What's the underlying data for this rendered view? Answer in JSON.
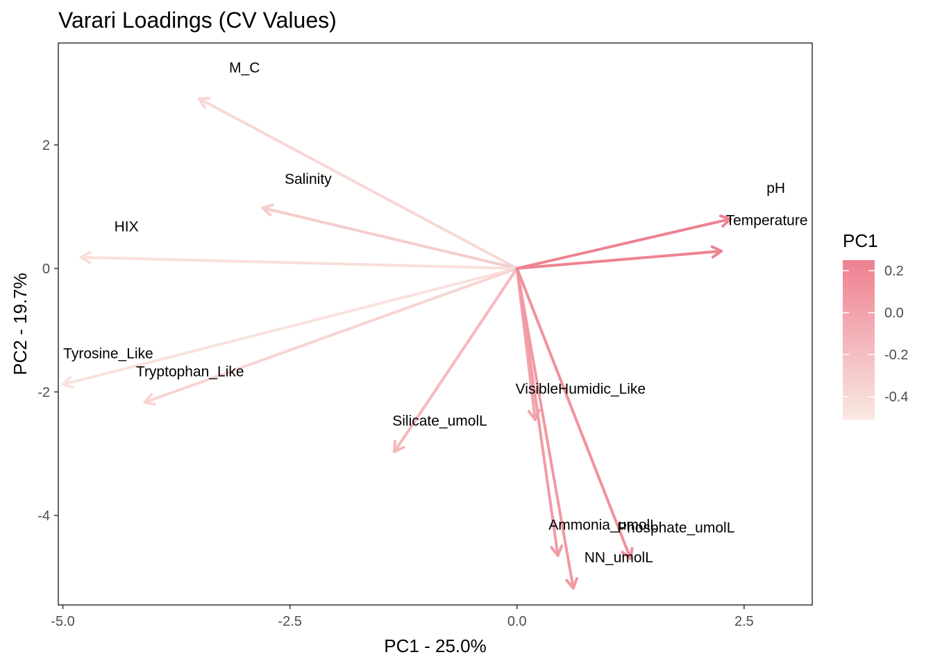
{
  "chart_data": {
    "type": "scatter",
    "subtype": "pca-loadings-biplot",
    "title": "Varari Loadings (CV Values)",
    "xlabel": "PC1 - 25.0%",
    "ylabel": "PC2 - 19.7%",
    "xlim": [
      -5.05,
      3.25
    ],
    "ylim": [
      -5.45,
      3.65
    ],
    "xticks": [
      -5.0,
      -2.5,
      0.0,
      2.5
    ],
    "xtick_labels": [
      "-5.0",
      "-2.5",
      "0.0",
      "2.5"
    ],
    "yticks": [
      2,
      0,
      -2,
      -4
    ],
    "ytick_labels": [
      "2",
      "0",
      "-2",
      "-4"
    ],
    "grid": false,
    "origin": [
      0,
      0
    ],
    "color_scale": {
      "name": "PC1",
      "min": -0.51,
      "max": 0.25,
      "low_color": "#f9e9e2",
      "high_color": "#ee8090",
      "ticks": [
        0.2,
        0.0,
        -0.2,
        -0.4
      ],
      "tick_labels": [
        "0.2",
        "0.0",
        "-0.2",
        "-0.4"
      ]
    },
    "legend_position": "right",
    "vectors": [
      {
        "name": "M_C",
        "x": -3.5,
        "y": 2.75,
        "pc1": -0.38,
        "label_x": -3.0,
        "label_y": 3.25
      },
      {
        "name": "Salinity",
        "x": -2.8,
        "y": 0.98,
        "pc1": -0.3,
        "label_x": -2.3,
        "label_y": 1.45
      },
      {
        "name": "HIX",
        "x": -4.8,
        "y": 0.18,
        "pc1": -0.44,
        "label_x": -4.3,
        "label_y": 0.68
      },
      {
        "name": "Tyrosine_Like",
        "x": -5.0,
        "y": -1.88,
        "pc1": -0.46,
        "label_x": -4.5,
        "label_y": -1.38
      },
      {
        "name": "Tryptophan_Like",
        "x": -4.1,
        "y": -2.17,
        "pc1": -0.36,
        "label_x": -3.6,
        "label_y": -1.67
      },
      {
        "name": "Silicate_umolL",
        "x": -1.35,
        "y": -2.97,
        "pc1": -0.16,
        "label_x": -0.85,
        "label_y": -2.47
      },
      {
        "name": "VisibleHumidic_Like",
        "x": 0.2,
        "y": -2.45,
        "pc1": -0.02,
        "label_x": 0.7,
        "label_y": -1.95
      },
      {
        "name": "Ammonia_umolL",
        "x": 0.45,
        "y": -4.65,
        "pc1": 0.05,
        "label_x": 0.95,
        "label_y": -4.15
      },
      {
        "name": "NN_umolL",
        "x": 0.62,
        "y": -5.18,
        "pc1": 0.07,
        "label_x": 1.12,
        "label_y": -4.68
      },
      {
        "name": "Phosphate_umolL",
        "x": 1.25,
        "y": -4.7,
        "pc1": 0.13,
        "label_x": 1.75,
        "label_y": -4.2
      },
      {
        "name": "pH",
        "x": 2.35,
        "y": 0.8,
        "pc1": 0.24,
        "label_x": 2.85,
        "label_y": 1.3
      },
      {
        "name": "Temperature",
        "x": 2.25,
        "y": 0.28,
        "pc1": 0.23,
        "label_x": 2.75,
        "label_y": 0.78
      }
    ]
  }
}
